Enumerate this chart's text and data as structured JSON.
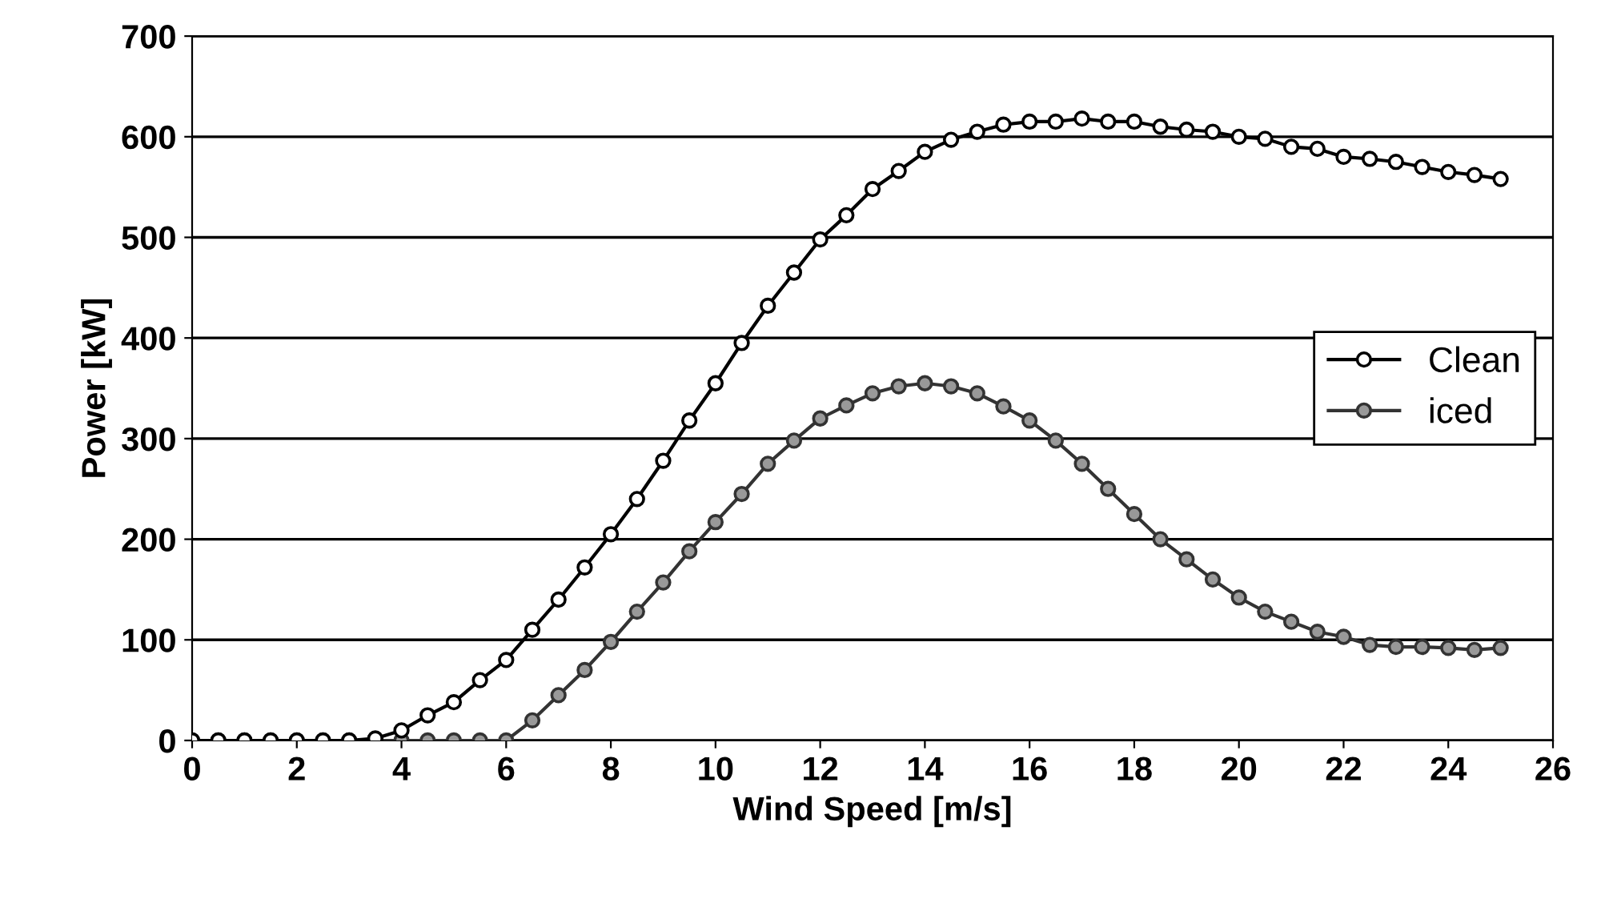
{
  "chart_data": {
    "type": "line",
    "xlabel": "Wind Speed [m/s]",
    "ylabel": "Power [kW]",
    "x": [
      0,
      0.5,
      1,
      1.5,
      2,
      2.5,
      3,
      3.5,
      4,
      4.5,
      5,
      5.5,
      6,
      6.5,
      7,
      7.5,
      8,
      8.5,
      9,
      9.5,
      10,
      10.5,
      11,
      11.5,
      12,
      12.5,
      13,
      13.5,
      14,
      14.5,
      15,
      15.5,
      16,
      16.5,
      17,
      17.5,
      18,
      18.5,
      19,
      19.5,
      20,
      20.5,
      21,
      21.5,
      22,
      22.5,
      23,
      23.5,
      24,
      24.5,
      25
    ],
    "series": [
      {
        "name": "Clean",
        "color": "#000000",
        "values": [
          0,
          0,
          0,
          0,
          0,
          0,
          0,
          2,
          10,
          25,
          38,
          60,
          80,
          110,
          140,
          172,
          205,
          240,
          278,
          318,
          355,
          395,
          432,
          465,
          498,
          522,
          548,
          566,
          585,
          597,
          605,
          612,
          615,
          615,
          618,
          615,
          615,
          610,
          607,
          605,
          600,
          598,
          590,
          588,
          580,
          578,
          575,
          570,
          565,
          562,
          558
        ]
      },
      {
        "name": "iced",
        "color": "#333333",
        "values": [
          0,
          0,
          0,
          0,
          0,
          0,
          0,
          0,
          0,
          0,
          0,
          0,
          0,
          20,
          45,
          70,
          98,
          128,
          157,
          188,
          217,
          245,
          275,
          298,
          320,
          333,
          345,
          352,
          355,
          352,
          345,
          332,
          318,
          298,
          275,
          250,
          225,
          200,
          180,
          160,
          142,
          128,
          118,
          108,
          103,
          95,
          93,
          93,
          92,
          90,
          92
        ]
      }
    ],
    "xlim": [
      0,
      26
    ],
    "xticks": [
      0,
      2,
      4,
      6,
      8,
      10,
      12,
      14,
      16,
      18,
      20,
      22,
      24,
      26
    ],
    "ylim": [
      0,
      700
    ],
    "yticks": [
      0,
      100,
      200,
      300,
      400,
      500,
      600,
      700
    ],
    "grid": "y",
    "legend": "center right",
    "marker": "circle",
    "line_style": "solid"
  }
}
